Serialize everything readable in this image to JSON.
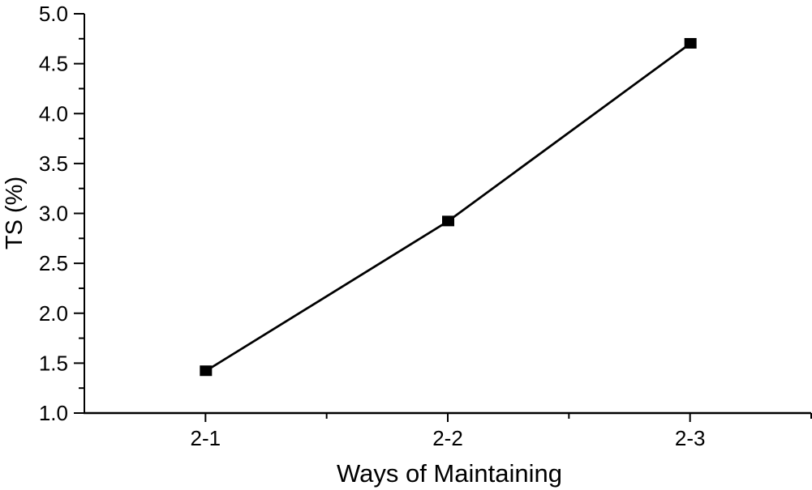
{
  "figure": {
    "background": "#ffffff"
  },
  "chart_data": {
    "type": "line",
    "title": "",
    "xlabel": "Ways of Maintaining",
    "ylabel": "TS (%)",
    "categories": [
      "2-1",
      "2-2",
      "2-3"
    ],
    "series": [
      {
        "name": "TS",
        "values": [
          1.42,
          2.92,
          4.7
        ]
      }
    ],
    "ylim": [
      1.0,
      5.0
    ],
    "y_tick_values": [
      1.0,
      1.5,
      2.0,
      2.5,
      3.0,
      3.5,
      4.0,
      4.5,
      5.0
    ],
    "y_tick_labels": [
      "1.0",
      "1.5",
      "2.0",
      "2.5",
      "3.0",
      "3.5",
      "4.0",
      "4.5",
      "5.0"
    ],
    "y_minor_tick_step": 0.25,
    "grid": false,
    "legend_position": "none",
    "marker": "filled-square",
    "line_color": "#000000",
    "marker_color": "#000000",
    "axis_color": "#000000",
    "text_color": "#000000"
  }
}
